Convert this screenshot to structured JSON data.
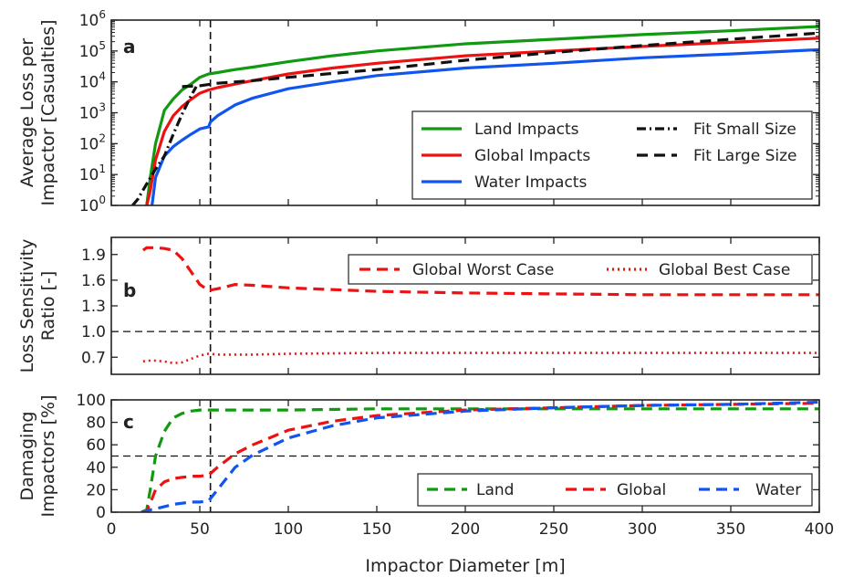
{
  "figure": {
    "xlabel": "Impactor Diameter [m]",
    "x_ticks": [
      0,
      50,
      100,
      150,
      200,
      250,
      300,
      350,
      400
    ],
    "xlim": [
      0,
      400
    ],
    "vertical_marker_x": 56
  },
  "colors": {
    "land": "#119911",
    "global": "#ee1111",
    "water": "#1155ee",
    "fit": "#111111",
    "ref": "#111111"
  },
  "chart_data": [
    {
      "type": "line",
      "panel": "a",
      "ylabel_lines": [
        "Average Loss per",
        "Impactor [Casualties]"
      ],
      "yscale": "log",
      "ylim": [
        1,
        1000000
      ],
      "y_ticks": [
        1,
        10,
        100,
        1000,
        10000,
        100000,
        1000000
      ],
      "y_tick_labels": [
        {
          "base": "10",
          "exp": "0"
        },
        {
          "base": "10",
          "exp": "1"
        },
        {
          "base": "10",
          "exp": "2"
        },
        {
          "base": "10",
          "exp": "3"
        },
        {
          "base": "10",
          "exp": "4"
        },
        {
          "base": "10",
          "exp": "5"
        },
        {
          "base": "10",
          "exp": "6"
        }
      ],
      "legend_position": "lower-right",
      "series": [
        {
          "name": "Land Impacts",
          "color_key": "land",
          "style": "solid",
          "x": [
            20,
            22,
            25,
            30,
            35,
            40,
            45,
            50,
            55,
            60,
            70,
            80,
            100,
            125,
            150,
            200,
            250,
            300,
            350,
            400
          ],
          "y": [
            1,
            8,
            100,
            1200,
            2800,
            5500,
            8500,
            14000,
            18000,
            20000,
            25000,
            30000,
            45000,
            70000,
            100000,
            170000,
            240000,
            340000,
            450000,
            620000
          ]
        },
        {
          "name": "Global Impacts",
          "color_key": "global",
          "style": "solid",
          "x": [
            20,
            22,
            25,
            30,
            35,
            40,
            45,
            50,
            55,
            60,
            70,
            80,
            100,
            125,
            150,
            200,
            250,
            300,
            350,
            400
          ],
          "y": [
            1,
            3,
            30,
            250,
            800,
            1600,
            2700,
            4300,
            5500,
            6500,
            8500,
            11000,
            18000,
            28000,
            40000,
            70000,
            100000,
            140000,
            190000,
            260000
          ]
        },
        {
          "name": "Water Impacts",
          "color_key": "water",
          "style": "solid",
          "x": [
            23,
            25,
            30,
            35,
            40,
            45,
            50,
            55,
            56,
            60,
            70,
            80,
            100,
            125,
            150,
            200,
            250,
            300,
            350,
            400
          ],
          "y": [
            1,
            8,
            40,
            80,
            130,
            200,
            300,
            350,
            500,
            800,
            1800,
            3000,
            6000,
            10000,
            16000,
            28000,
            40000,
            60000,
            80000,
            110000
          ]
        },
        {
          "name": "Fit Small Size",
          "color_key": "fit",
          "style": "dashdot",
          "x": [
            12,
            15,
            20,
            25,
            30,
            35,
            40,
            45,
            48
          ],
          "y": [
            1,
            1.6,
            5,
            15,
            40,
            200,
            900,
            3500,
            7000
          ]
        },
        {
          "name": "Fit Large Size",
          "color_key": "fit",
          "style": "dashed",
          "x": [
            40,
            50,
            60,
            80,
            100,
            150,
            200,
            250,
            300,
            350,
            400
          ],
          "y": [
            7000,
            7500,
            9000,
            11000,
            14000,
            25000,
            50000,
            90000,
            150000,
            240000,
            380000
          ]
        }
      ]
    },
    {
      "type": "line",
      "panel": "b",
      "ylabel_lines": [
        "Loss Sensitivity",
        "Ratio [-]"
      ],
      "yscale": "linear",
      "ylim": [
        0.5,
        2.1
      ],
      "y_ticks": [
        0.7,
        1.0,
        1.3,
        1.6,
        1.9
      ],
      "y_tick_labels": [
        "0.7",
        "1.0",
        "1.3",
        "1.6",
        "1.9"
      ],
      "reference_line": 1.0,
      "legend_position": "top-right",
      "series": [
        {
          "name": "Global Worst Case",
          "color_key": "global",
          "style": "dashed",
          "x": [
            18,
            20,
            25,
            30,
            35,
            40,
            45,
            50,
            55,
            60,
            70,
            80,
            100,
            150,
            200,
            250,
            300,
            350,
            400
          ],
          "y": [
            1.95,
            1.98,
            1.98,
            1.97,
            1.95,
            1.85,
            1.7,
            1.55,
            1.48,
            1.5,
            1.55,
            1.54,
            1.51,
            1.47,
            1.45,
            1.44,
            1.43,
            1.43,
            1.43
          ]
        },
        {
          "name": "Global Best Case",
          "color_key": "global",
          "style": "dotted",
          "x": [
            18,
            20,
            25,
            30,
            35,
            40,
            45,
            50,
            55,
            60,
            70,
            80,
            100,
            150,
            200,
            250,
            300,
            350,
            400
          ],
          "y": [
            0.65,
            0.66,
            0.66,
            0.65,
            0.63,
            0.64,
            0.68,
            0.72,
            0.74,
            0.73,
            0.73,
            0.73,
            0.74,
            0.75,
            0.75,
            0.75,
            0.75,
            0.75,
            0.75
          ]
        }
      ]
    },
    {
      "type": "line",
      "panel": "c",
      "ylabel_lines": [
        "Damaging",
        "Impactors [%]"
      ],
      "yscale": "linear",
      "ylim": [
        0,
        100
      ],
      "y_ticks": [
        0,
        20,
        40,
        60,
        80,
        100
      ],
      "y_tick_labels": [
        "0",
        "20",
        "40",
        "60",
        "80",
        "100"
      ],
      "reference_line": 50,
      "legend_position": "bottom-right",
      "series": [
        {
          "name": "Land",
          "color_key": "land",
          "style": "dashed",
          "x": [
            17,
            20,
            22,
            25,
            30,
            35,
            40,
            45,
            50,
            55,
            60,
            80,
            100,
            150,
            200,
            250,
            300,
            350,
            400
          ],
          "y": [
            0,
            2,
            20,
            50,
            72,
            84,
            88,
            90,
            91,
            91,
            91,
            91,
            91,
            92,
            92,
            92,
            92,
            92,
            92
          ]
        },
        {
          "name": "Global",
          "color_key": "global",
          "style": "dashed",
          "x": [
            17,
            20,
            22,
            25,
            30,
            35,
            40,
            45,
            50,
            55,
            60,
            70,
            80,
            100,
            125,
            150,
            200,
            250,
            300,
            350,
            400
          ],
          "y": [
            0,
            1,
            8,
            20,
            27,
            30,
            31,
            32,
            32,
            33,
            40,
            52,
            60,
            73,
            81,
            86,
            91,
            93,
            95,
            96,
            97
          ]
        },
        {
          "name": "Water",
          "color_key": "water",
          "style": "dashed",
          "x": [
            17,
            20,
            22,
            25,
            30,
            35,
            40,
            45,
            50,
            55,
            60,
            70,
            80,
            100,
            125,
            150,
            200,
            250,
            300,
            350,
            400
          ],
          "y": [
            0,
            1,
            2,
            3,
            5,
            7,
            8,
            9,
            9,
            10,
            20,
            40,
            51,
            66,
            77,
            84,
            90,
            93,
            95,
            96,
            98
          ]
        }
      ]
    }
  ]
}
